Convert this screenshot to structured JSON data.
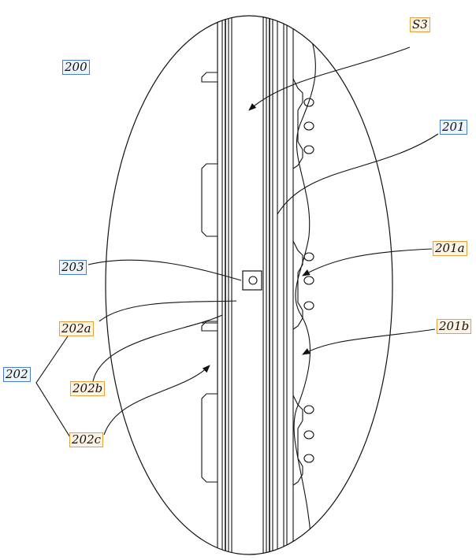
{
  "labels": {
    "s3": "S3",
    "n200": "200",
    "n201": "201",
    "n201a": "201a",
    "n201b": "201b",
    "n202": "202",
    "n202a": "202a",
    "n202b": "202b",
    "n202c": "202c",
    "n203": "203"
  },
  "colors": {
    "line": "#111111",
    "label_border_blue": "#4a7fc1",
    "label_border_orange": "#e2a040"
  }
}
